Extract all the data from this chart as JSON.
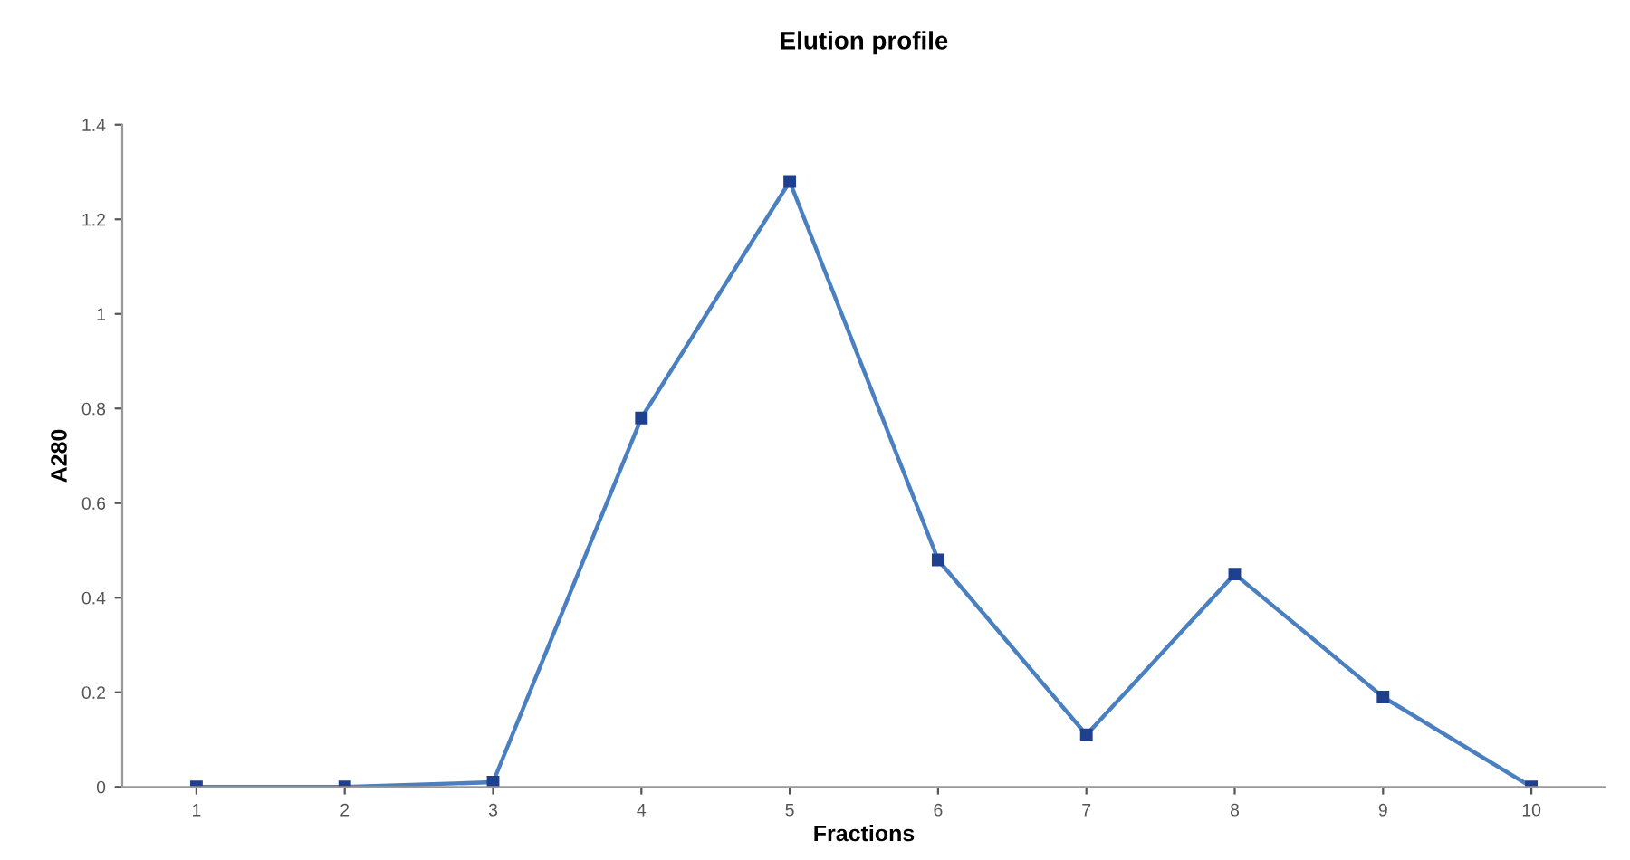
{
  "chart_data": {
    "type": "line",
    "title": "Elution profile",
    "xlabel": "Fractions",
    "ylabel": "A280",
    "categories": [
      "1",
      "2",
      "3",
      "4",
      "5",
      "6",
      "7",
      "8",
      "9",
      "10"
    ],
    "series": [
      {
        "color": "#4a7fc0",
        "values": [
          0,
          0,
          0.01,
          0.78,
          1.28,
          0.48,
          0.11,
          0.45,
          0.19,
          0
        ]
      }
    ],
    "ylim": [
      0,
      1.4
    ],
    "yticks": [
      0,
      0.2,
      0.4,
      0.6,
      0.8,
      1,
      1.2,
      1.4
    ],
    "marker": "square",
    "line_style": "solid"
  }
}
